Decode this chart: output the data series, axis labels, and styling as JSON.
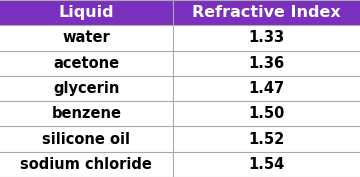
{
  "header": [
    "Liquid",
    "Refractive Index"
  ],
  "rows": [
    [
      "water",
      "1.33"
    ],
    [
      "acetone",
      "1.36"
    ],
    [
      "glycerin",
      "1.47"
    ],
    [
      "benzene",
      "1.50"
    ],
    [
      "silicone oil",
      "1.52"
    ],
    [
      "sodium chloride",
      "1.54"
    ]
  ],
  "header_bg_color": "#7B2FBE",
  "header_text_color": "#FFFFFF",
  "row_bg_color": "#FFFFFF",
  "row_text_color": "#000000",
  "border_color": "#AAAAAA",
  "header_fontsize": 11.5,
  "row_fontsize": 10.5,
  "col_split": 0.48,
  "fig_bg_color": "#FFFFFF",
  "fig_width": 3.6,
  "fig_height": 1.77,
  "dpi": 100
}
